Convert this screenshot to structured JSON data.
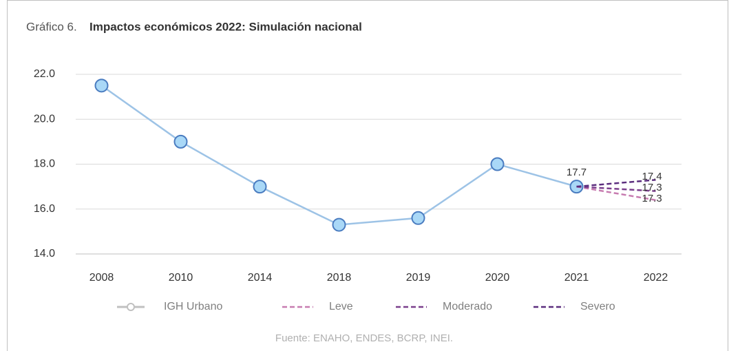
{
  "chart_data": {
    "type": "line",
    "label": "Gráfico 6.",
    "title": "Impactos económicos 2022: Simulación nacional",
    "source": "Fuente: ENAHO, ENDES, BCRP, INEI.",
    "categories": [
      "2008",
      "2010",
      "2014",
      "2018",
      "2019",
      "2020",
      "2021",
      "2022"
    ],
    "series": [
      {
        "name": "IGH Urbano",
        "color": "#9dc3e6",
        "values": [
          21.5,
          19.0,
          17.0,
          15.3,
          15.6,
          18.0,
          17.0,
          null
        ]
      },
      {
        "name": "Leve",
        "color": "#c77bb0",
        "values": [
          null,
          null,
          null,
          null,
          null,
          null,
          17.0,
          16.4
        ]
      },
      {
        "name": "Moderado",
        "color": "#7a3e8c",
        "values": [
          null,
          null,
          null,
          null,
          null,
          null,
          17.0,
          16.8
        ]
      },
      {
        "name": "Severo",
        "color": "#5b2d7e",
        "values": [
          null,
          null,
          null,
          null,
          null,
          null,
          17.0,
          17.3
        ]
      }
    ],
    "annotations": [
      "17.7",
      "17.4",
      "17.3",
      "17.3"
    ],
    "ylim": [
      14,
      22
    ],
    "yticks": [
      {
        "value": 14,
        "label": "14.0"
      },
      {
        "value": 16,
        "label": "16.0"
      },
      {
        "value": 18,
        "label": "18.0"
      },
      {
        "value": 20,
        "label": "20.0"
      },
      {
        "value": 22,
        "label": "22.0"
      }
    ],
    "grid": true
  }
}
